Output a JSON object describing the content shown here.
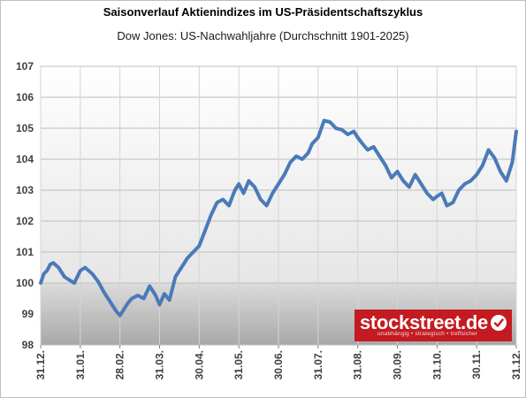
{
  "chart_data": {
    "type": "line",
    "title": "Saisonverlauf Aktienindizes im US-Präsidentschaftszyklus",
    "subtitle": "Dow Jones: US-Nachwahljahre (Durchschnitt 1901-2025)",
    "xlabel": "",
    "ylabel": "",
    "ylim": [
      98,
      107
    ],
    "yticks": [
      98,
      99,
      100,
      101,
      102,
      103,
      104,
      105,
      106,
      107
    ],
    "xtick_labels": [
      "31.12.",
      "31.01.",
      "28.02.",
      "31.03.",
      "30.04.",
      "31.05.",
      "30.06.",
      "31.07.",
      "31.08.",
      "30.09.",
      "31.10.",
      "30.11.",
      "31.12."
    ],
    "grid": true,
    "baseline": 100,
    "line_color": "#4a7ab8",
    "x_months": [
      0.0,
      0.08,
      0.16,
      0.24,
      0.32,
      0.45,
      0.6,
      0.72,
      0.85,
      1.0,
      1.12,
      1.3,
      1.45,
      1.6,
      1.75,
      1.9,
      2.0,
      2.1,
      2.2,
      2.3,
      2.45,
      2.6,
      2.75,
      2.9,
      3.0,
      3.12,
      3.25,
      3.4,
      3.55,
      3.7,
      3.85,
      4.0,
      4.15,
      4.3,
      4.45,
      4.6,
      4.75,
      4.9,
      5.0,
      5.12,
      5.25,
      5.4,
      5.55,
      5.7,
      5.85,
      6.0,
      6.15,
      6.3,
      6.45,
      6.6,
      6.75,
      6.85,
      7.0,
      7.15,
      7.3,
      7.45,
      7.6,
      7.75,
      7.9,
      8.0,
      8.12,
      8.25,
      8.4,
      8.55,
      8.7,
      8.85,
      9.0,
      9.15,
      9.3,
      9.45,
      9.6,
      9.75,
      9.9,
      10.0,
      10.12,
      10.25,
      10.4,
      10.55,
      10.7,
      10.85,
      11.0,
      11.15,
      11.3,
      11.45,
      11.6,
      11.75,
      11.9,
      12.0
    ],
    "values": [
      100.0,
      100.3,
      100.4,
      100.6,
      100.65,
      100.5,
      100.2,
      100.1,
      100.0,
      100.4,
      100.5,
      100.3,
      100.05,
      99.7,
      99.4,
      99.1,
      98.95,
      99.15,
      99.35,
      99.5,
      99.6,
      99.5,
      99.9,
      99.6,
      99.3,
      99.65,
      99.45,
      100.2,
      100.5,
      100.8,
      101.0,
      101.2,
      101.7,
      102.2,
      102.6,
      102.7,
      102.5,
      103.0,
      103.2,
      102.9,
      103.3,
      103.1,
      102.7,
      102.5,
      102.9,
      103.2,
      103.5,
      103.9,
      104.1,
      104.0,
      104.2,
      104.5,
      104.7,
      105.25,
      105.2,
      105.0,
      104.95,
      104.8,
      104.9,
      104.7,
      104.5,
      104.3,
      104.4,
      104.1,
      103.8,
      103.4,
      103.6,
      103.3,
      103.1,
      103.5,
      103.2,
      102.9,
      102.7,
      102.8,
      102.9,
      102.5,
      102.6,
      103.0,
      103.2,
      103.3,
      103.5,
      103.8,
      104.3,
      104.05,
      103.6,
      103.3,
      103.9,
      104.9
    ]
  },
  "watermark": {
    "brand": "stockstreet.de",
    "tagline": "unabhängig • strategisch • treffsicher"
  }
}
